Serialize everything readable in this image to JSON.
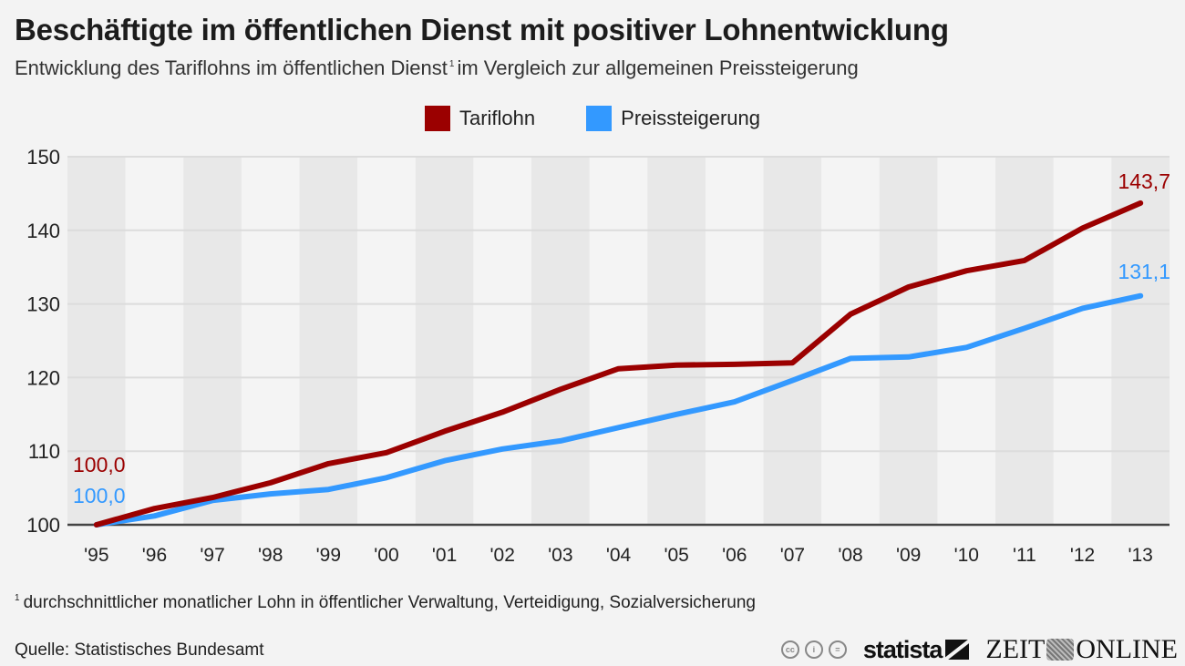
{
  "header": {
    "title": "Beschäftigte im öffentlichen Dienst mit positiver Lohnentwicklung",
    "subtitle_main": "Entwicklung des Tariflohns im öffentlichen Dienst",
    "subtitle_sup": "1",
    "subtitle_rest": "im Vergleich zur allgemeinen Preissteigerung"
  },
  "footer": {
    "footnote_sup": "1",
    "footnote": "durchschnittlicher monatlicher Lohn in öffentlicher Verwaltung, Verteidigung, Sozialversicherung",
    "source": "Quelle: Statistisches Bundesamt",
    "logos": {
      "cc_icons": [
        "cc-icon",
        "by-icon",
        "nd-icon"
      ],
      "cc_labels": [
        "cc",
        "i",
        "="
      ],
      "statista": "statista",
      "zeit_left": "ZEIT",
      "zeit_right": "ONLINE"
    }
  },
  "colors": {
    "tariflohn": "#9b0000",
    "preissteigerung": "#3399ff",
    "band_dark": "#e8e8e8",
    "band_light": "#f4f4f4",
    "grid": "#dcdcdc",
    "axis": "#444444"
  },
  "chart_data": {
    "type": "line",
    "title": "Beschäftigte im öffentlichen Dienst mit positiver Lohnentwicklung",
    "subtitle": "Entwicklung des Tariflohns im öffentlichen Dienst im Vergleich zur allgemeinen Preissteigerung",
    "xlabel": "",
    "ylabel": "",
    "ylim": [
      100,
      150
    ],
    "yticks": [
      100,
      110,
      120,
      130,
      140,
      150
    ],
    "ytick_labels": [
      "100",
      "110",
      "120",
      "130",
      "140",
      "150"
    ],
    "categories": [
      "'95",
      "'96",
      "'97",
      "'98",
      "'99",
      "'00",
      "'01",
      "'02",
      "'03",
      "'04",
      "'05",
      "'06",
      "'07",
      "'08",
      "'09",
      "'10",
      "'11",
      "'12",
      "'13"
    ],
    "grid": true,
    "legend_position": "top-center",
    "series": [
      {
        "name": "Tariflohn",
        "color": "#9b0000",
        "values": [
          100.0,
          102.2,
          103.7,
          105.7,
          108.3,
          109.8,
          112.7,
          115.3,
          118.4,
          121.2,
          121.7,
          121.8,
          122.0,
          128.6,
          132.3,
          134.5,
          135.9,
          140.3,
          143.7
        ],
        "start_label": "100,0",
        "end_label": "143,7"
      },
      {
        "name": "Preissteigerung",
        "color": "#3399ff",
        "values": [
          100.0,
          101.2,
          103.3,
          104.2,
          104.8,
          106.4,
          108.7,
          110.3,
          111.4,
          113.2,
          115.0,
          116.7,
          119.6,
          122.6,
          122.8,
          124.1,
          126.7,
          129.4,
          131.1
        ],
        "start_label": "100,0",
        "end_label": "131,1"
      }
    ]
  }
}
